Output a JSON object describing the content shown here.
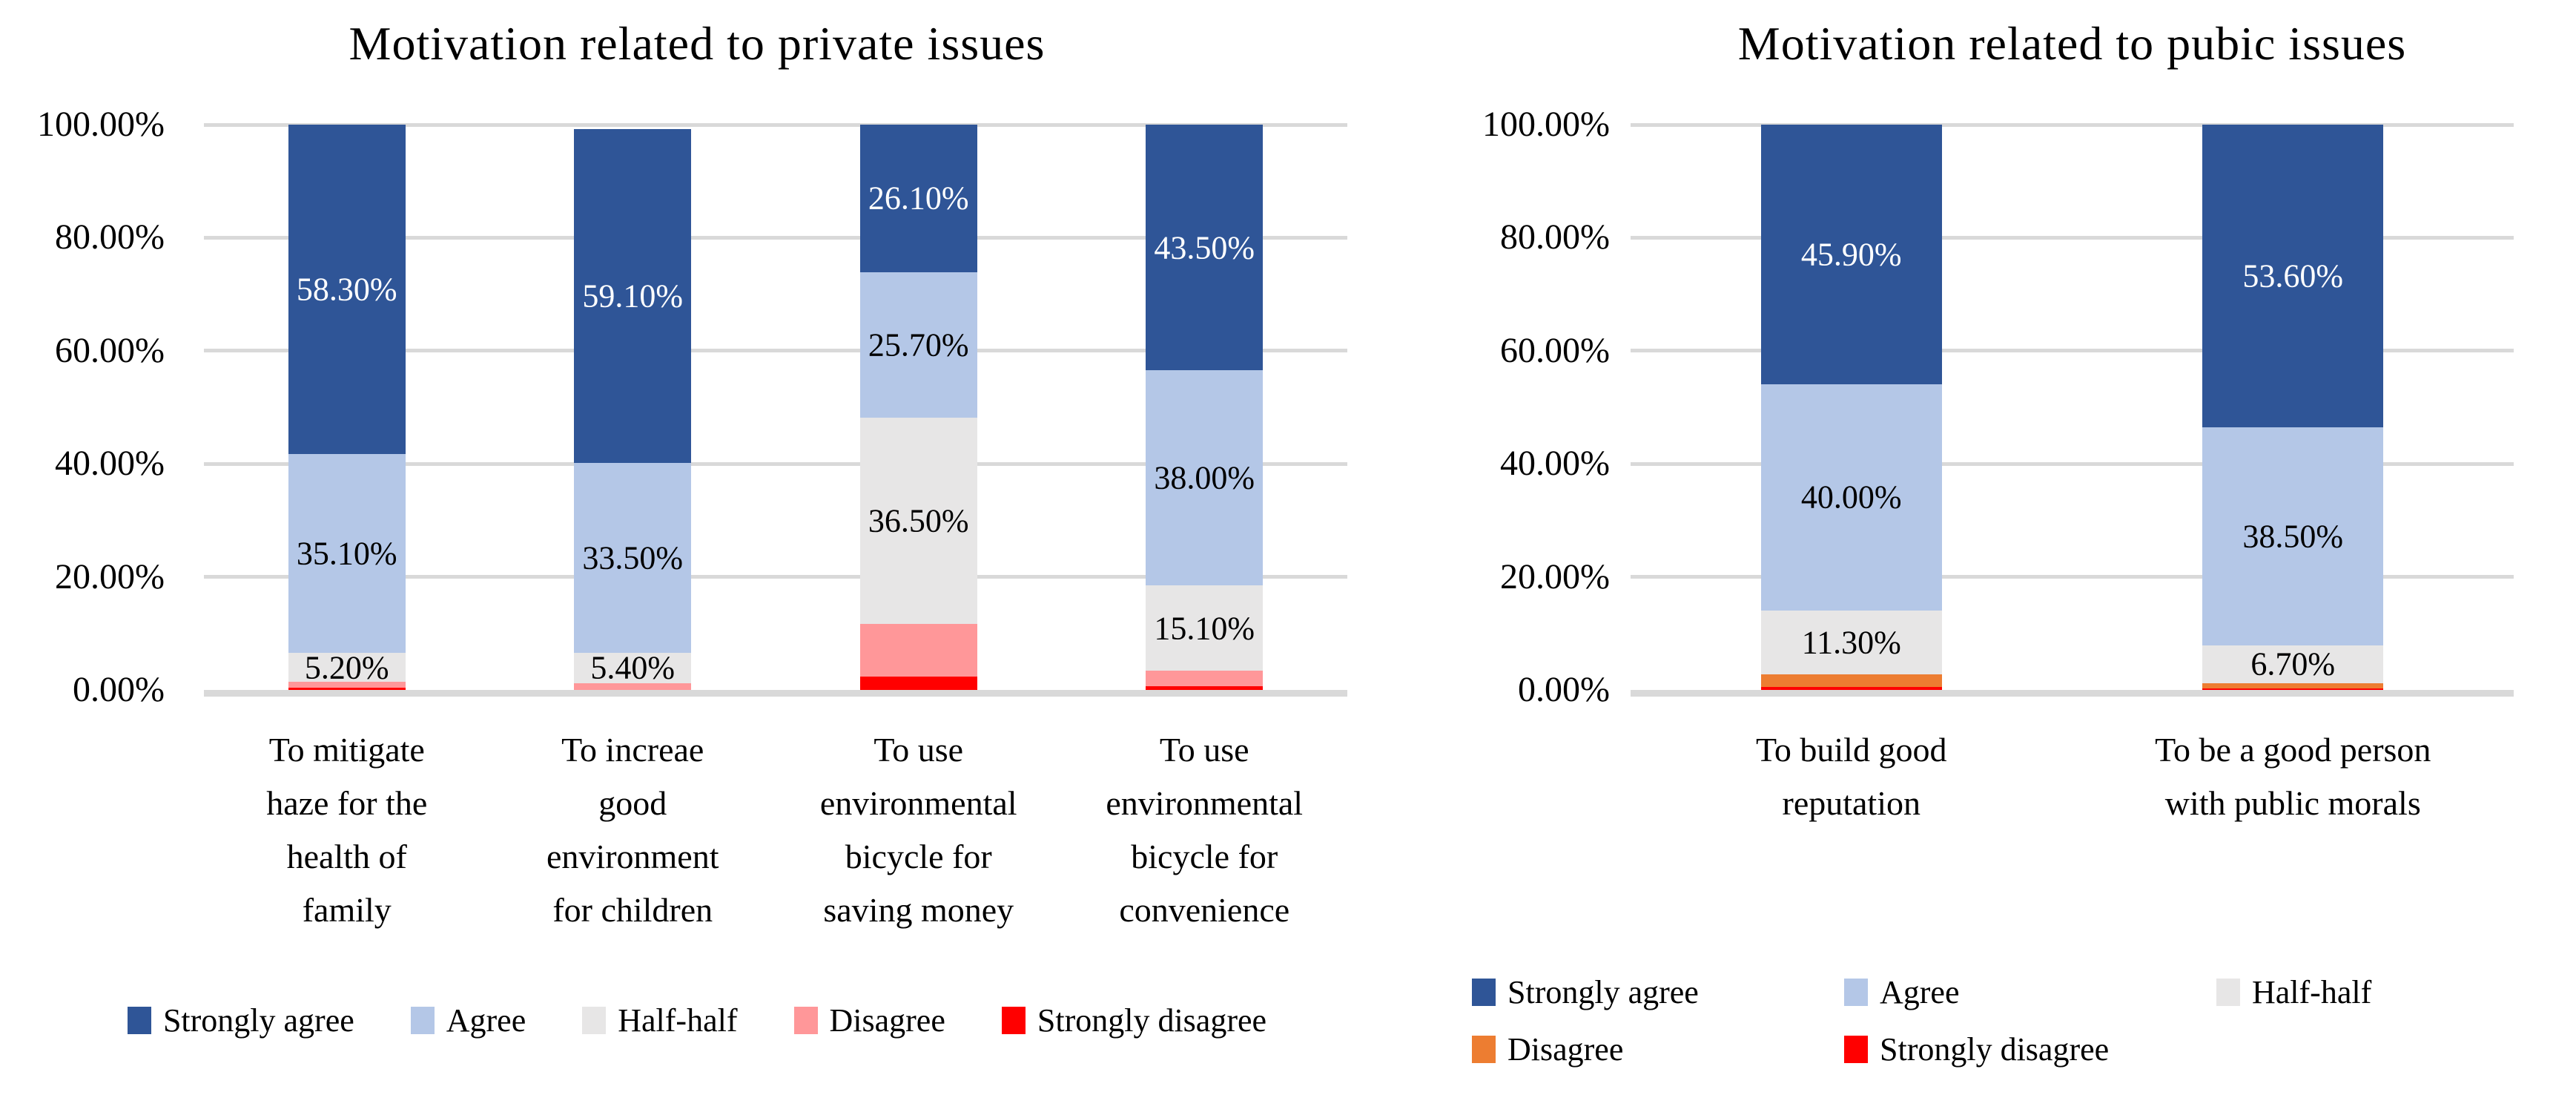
{
  "figure": {
    "background": "#FFFFFF",
    "gridline_color": "#D9D9D9"
  },
  "chart_data": [
    {
      "type": "bar",
      "subtype": "stacked-100",
      "title": "Motivation related to private issues",
      "grid": true,
      "legend_position": "bottom",
      "y_axis": {
        "min": 0,
        "max": 100,
        "step": 20,
        "tick_labels": [
          "100.00%",
          "80.00%",
          "60.00%",
          "40.00%",
          "20.00%",
          "0.00%"
        ],
        "values": [
          100,
          80,
          60,
          40,
          20,
          0
        ]
      },
      "categories": [
        {
          "label": "To mitigate haze for the health of family",
          "lines": [
            "To mitigate",
            "haze for the",
            "health of",
            "family"
          ]
        },
        {
          "label": "To increae good environment for children",
          "lines": [
            "To increae",
            "good",
            "environment",
            "for children"
          ]
        },
        {
          "label": "To use environmental bicycle for saving money",
          "lines": [
            "To use",
            "environmental",
            "bicycle for",
            "saving money"
          ]
        },
        {
          "label": "To use environmental bicycle for convenience",
          "lines": [
            "To use",
            "environmental",
            "bicycle for",
            "convenience"
          ]
        }
      ],
      "series": [
        {
          "name": "Strongly agree",
          "color": "#2F5597",
          "label_color": "#FFFFFF",
          "values": [
            58.3,
            59.1,
            26.1,
            43.5
          ],
          "data_labels": [
            "58.30%",
            "59.10%",
            "26.10%",
            "43.50%"
          ]
        },
        {
          "name": "Agree",
          "color": "#B4C7E7",
          "label_color": "#000000",
          "values": [
            35.1,
            33.5,
            25.7,
            38.0
          ],
          "data_labels": [
            "35.10%",
            "33.50%",
            "25.70%",
            "38.00%"
          ]
        },
        {
          "name": "Half-half",
          "color": "#E7E6E6",
          "label_color": "#000000",
          "values": [
            5.2,
            5.4,
            36.5,
            15.1
          ],
          "data_labels": [
            "5.20%",
            "5.40%",
            "36.50%",
            "15.10%"
          ]
        },
        {
          "name": "Disagree",
          "color": "#FF9799",
          "label_color": "#000000",
          "values": [
            1.0,
            1.2,
            9.4,
            2.7
          ],
          "data_labels": [
            null,
            null,
            null,
            null
          ]
        },
        {
          "name": "Strongly disagree",
          "color": "#FF0000",
          "label_color": "#FFFFFF",
          "values": [
            0.4,
            0.0,
            2.3,
            0.7
          ],
          "data_labels": [
            null,
            null,
            null,
            null
          ]
        }
      ],
      "legend": {
        "layout": "row",
        "items": [
          {
            "label": "Strongly agree",
            "color": "#2F5597"
          },
          {
            "label": "Agree",
            "color": "#B4C7E7"
          },
          {
            "label": "Half-half",
            "color": "#E7E6E6"
          },
          {
            "label": "Disagree",
            "color": "#FF9799"
          },
          {
            "label": "Strongly disagree",
            "color": "#FF0000"
          }
        ]
      }
    },
    {
      "type": "bar",
      "subtype": "stacked-100",
      "title": "Motivation related to pubic issues",
      "grid": true,
      "legend_position": "bottom",
      "y_axis": {
        "min": 0,
        "max": 100,
        "step": 20,
        "tick_labels": [
          "100.00%",
          "80.00%",
          "60.00%",
          "40.00%",
          "20.00%",
          "0.00%"
        ],
        "values": [
          100,
          80,
          60,
          40,
          20,
          0
        ]
      },
      "categories": [
        {
          "label": "To build good reputation",
          "lines": [
            "To build good",
            "reputation"
          ]
        },
        {
          "label": "To be a good person with public morals",
          "lines": [
            "To be a good person",
            "with public morals"
          ]
        }
      ],
      "series": [
        {
          "name": "Strongly agree",
          "color": "#2F5597",
          "label_color": "#FFFFFF",
          "values": [
            45.9,
            53.6
          ],
          "data_labels": [
            "45.90%",
            "53.60%"
          ]
        },
        {
          "name": "Agree",
          "color": "#B4C7E7",
          "label_color": "#000000",
          "values": [
            40.0,
            38.5
          ],
          "data_labels": [
            "40.00%",
            "38.50%"
          ]
        },
        {
          "name": "Half-half",
          "color": "#E7E6E6",
          "label_color": "#000000",
          "values": [
            11.3,
            6.7
          ],
          "data_labels": [
            "11.30%",
            "6.70%"
          ]
        },
        {
          "name": "Disagree",
          "color": "#ED7D31",
          "label_color": "#000000",
          "values": [
            2.3,
            1.0
          ],
          "data_labels": [
            null,
            null
          ]
        },
        {
          "name": "Strongly disagree",
          "color": "#FF0000",
          "label_color": "#FFFFFF",
          "values": [
            0.5,
            0.2
          ],
          "data_labels": [
            null,
            null
          ]
        }
      ],
      "legend": {
        "layout": "grid",
        "items": [
          {
            "label": "Strongly agree",
            "color": "#2F5597"
          },
          {
            "label": "Agree",
            "color": "#B4C7E7"
          },
          {
            "label": "Half-half",
            "color": "#E7E6E6"
          },
          {
            "label": "Disagree",
            "color": "#ED7D31"
          },
          {
            "label": "Strongly disagree",
            "color": "#FF0000"
          }
        ]
      }
    }
  ]
}
